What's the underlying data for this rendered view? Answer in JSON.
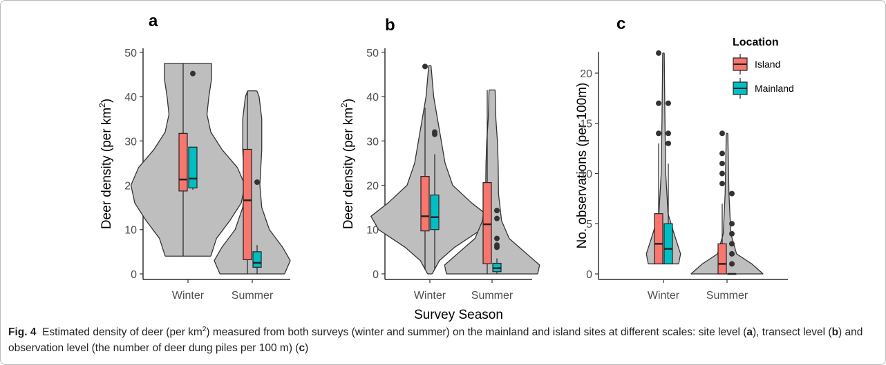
{
  "caption": [
    {
      "text": "Fig. 4",
      "style": "bold"
    },
    {
      "text": "  Estimated density of deer (per km"
    },
    {
      "text": "2",
      "style": "sup"
    },
    {
      "text": ") measured from both surveys (winter and summer) on the mainland and island sites at different scales: site level ("
    },
    {
      "text": "a",
      "style": "bold"
    },
    {
      "text": "), transect level ("
    },
    {
      "text": "b",
      "style": "bold"
    },
    {
      "text": ") and observation level (the number of deer dung piles per 100 m) ("
    },
    {
      "text": "c",
      "style": "bold"
    },
    {
      "text": ")"
    }
  ],
  "chart_data": [
    {
      "type": "violin-box",
      "title": "a",
      "ylabel": [
        {
          "text": "Deer density (per km"
        },
        {
          "text": "2",
          "style": "sup"
        },
        {
          "text": ")"
        }
      ],
      "categories": [
        "Winter",
        "Summer"
      ],
      "ylim": [
        -1.25,
        50.9
      ],
      "yticks": [
        0,
        10,
        20,
        30,
        40,
        50
      ],
      "violin_color": "#bebebe",
      "violins": [
        {
          "y": [
            4,
            8,
            12,
            16,
            20,
            24,
            28,
            32,
            36,
            40,
            44,
            47.5
          ],
          "width": [
            0.6,
            0.75,
            1.1,
            1.4,
            1.5,
            1.3,
            0.9,
            0.6,
            0.5,
            0.55,
            0.62,
            0.62
          ]
        },
        {
          "y": [
            0,
            3,
            6,
            10,
            15,
            20,
            28,
            35,
            40,
            41.3
          ],
          "width": [
            0.85,
            1.0,
            0.8,
            0.45,
            0.25,
            0.2,
            0.25,
            0.25,
            0.18,
            0.12
          ]
        }
      ],
      "series": [
        {
          "color": "#F8766D",
          "min": [
            4,
            0
          ],
          "q1": [
            18.7,
            3.2
          ],
          "median": [
            21.3,
            16.6
          ],
          "q3": [
            31.7,
            28.1
          ],
          "max": [
            47.5,
            41.3
          ],
          "outliers": [
            [],
            []
          ]
        },
        {
          "color": "#00BFC4",
          "min": [
            19,
            0
          ],
          "q1": [
            19.4,
            1.5
          ],
          "median": [
            21.5,
            2.5
          ],
          "q3": [
            28.6,
            5
          ],
          "max": [
            28.6,
            6.5
          ],
          "outliers": [
            [
              45.2
            ],
            [
              20.7
            ]
          ]
        }
      ]
    },
    {
      "type": "violin-box",
      "title": "b",
      "ylabel": [
        {
          "text": "Deer density (per km"
        },
        {
          "text": "2",
          "style": "sup"
        },
        {
          "text": ")"
        }
      ],
      "xlabel": "Survey Season",
      "categories": [
        "Winter",
        "Summer"
      ],
      "ylim": [
        -1.25,
        50.9
      ],
      "yticks": [
        0,
        10,
        20,
        30,
        40,
        50
      ],
      "violin_color": "#bebebe",
      "violins": [
        {
          "y": [
            0,
            3,
            6,
            10,
            13,
            16,
            20,
            25,
            30,
            35,
            40,
            47
          ],
          "width": [
            0.06,
            0.25,
            0.65,
            1.35,
            1.55,
            1.1,
            0.6,
            0.4,
            0.3,
            0.2,
            0.1,
            0.03
          ]
        },
        {
          "y": [
            0,
            2,
            5,
            8,
            12,
            18,
            25,
            30,
            35,
            41.5
          ],
          "width": [
            1.2,
            1.25,
            0.85,
            0.45,
            0.25,
            0.17,
            0.16,
            0.14,
            0.1,
            0.08
          ]
        }
      ],
      "series": [
        {
          "color": "#F8766D",
          "min": [
            1,
            0
          ],
          "q1": [
            9.7,
            2.3
          ],
          "median": [
            13,
            11.2
          ],
          "q3": [
            22,
            20.6
          ],
          "max": [
            37.5,
            41.5
          ],
          "outliers": [
            [
              46.8
            ],
            []
          ]
        },
        {
          "color": "#00BFC4",
          "min": [
            1,
            0
          ],
          "q1": [
            10,
            0.5
          ],
          "median": [
            12.8,
            1.3
          ],
          "q3": [
            17.8,
            2.4
          ],
          "max": [
            27,
            3.5
          ],
          "outliers": [
            [
              31.5,
              32
            ],
            [
              6,
              6.5,
              8,
              12.5,
              14.3
            ]
          ]
        }
      ]
    },
    {
      "type": "violin-box",
      "title": "c",
      "ylabel": [
        {
          "text": "No. observations (per 100m)"
        }
      ],
      "categories": [
        "Winter",
        "Summer"
      ],
      "ylim": [
        -0.55,
        22.13
      ],
      "yticks": [
        0,
        5,
        10,
        15,
        20
      ],
      "violin_color": "#bebebe",
      "violins": [
        {
          "y": [
            1,
            2,
            4,
            6,
            10,
            15,
            22
          ],
          "width": [
            0.4,
            0.45,
            0.28,
            0.12,
            0.06,
            0.04,
            0.02
          ]
        },
        {
          "y": [
            0,
            1,
            2,
            4,
            8,
            14
          ],
          "width": [
            0.95,
            0.65,
            0.25,
            0.1,
            0.05,
            0.02
          ]
        }
      ],
      "legend": {
        "title": "Location"
      },
      "series": [
        {
          "name": "Island",
          "color": "#F8766D",
          "min": [
            1,
            0
          ],
          "q1": [
            1,
            0
          ],
          "median": [
            3,
            1
          ],
          "q3": [
            6,
            3
          ],
          "max": [
            13,
            7
          ],
          "outliers": [
            [
              14,
              17,
              22
            ],
            [
              9,
              10,
              11,
              12,
              14
            ]
          ]
        },
        {
          "name": "Mainland",
          "color": "#00BFC4",
          "min": [
            1,
            0
          ],
          "q1": [
            1,
            0
          ],
          "median": [
            2.5,
            0
          ],
          "q3": [
            5,
            0
          ],
          "max": [
            11,
            0
          ],
          "outliers": [
            [
              13,
              14,
              17
            ],
            [
              1,
              2,
              3,
              4,
              5,
              8
            ]
          ]
        }
      ]
    }
  ]
}
